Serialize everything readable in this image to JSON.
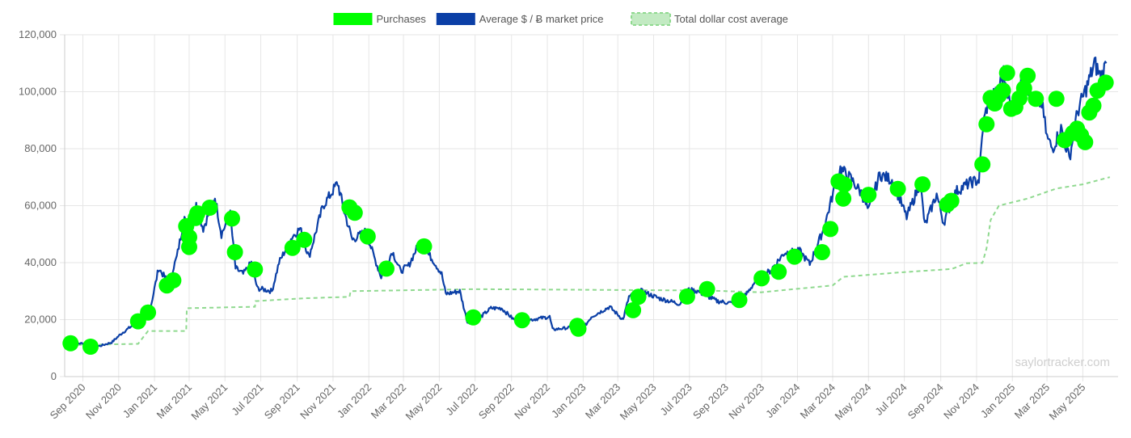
{
  "chart_data": {
    "type": "line",
    "legend": {
      "position": "top",
      "items": [
        {
          "label": "Purchases",
          "color": "#00ff00",
          "style": "filled"
        },
        {
          "label": "Average $ / Ƀ market price",
          "color": "#0b3fa6",
          "style": "filled"
        },
        {
          "label": "Total dollar cost average",
          "color": "#8fd98f",
          "style": "dashed"
        }
      ]
    },
    "y_axis": {
      "min": 0,
      "max": 120000,
      "ticks": [
        0,
        20000,
        40000,
        60000,
        80000,
        100000,
        120000
      ],
      "tick_labels": [
        "0",
        "20,000",
        "40,000",
        "60,000",
        "80,000",
        "100,000",
        "120,000"
      ]
    },
    "x_axis": {
      "min": "2020-08-01",
      "max": "2025-06-30",
      "ticks": [
        "2020-09-01",
        "2020-11-01",
        "2021-01-01",
        "2021-03-01",
        "2021-05-01",
        "2021-07-01",
        "2021-09-01",
        "2021-11-01",
        "2022-01-01",
        "2022-03-01",
        "2022-05-01",
        "2022-07-01",
        "2022-09-01",
        "2022-11-01",
        "2023-01-01",
        "2023-03-01",
        "2023-05-01",
        "2023-07-01",
        "2023-09-01",
        "2023-11-01",
        "2024-01-01",
        "2024-03-01",
        "2024-05-01",
        "2024-07-01",
        "2024-09-01",
        "2024-11-01",
        "2025-01-01",
        "2025-03-01",
        "2025-05-01"
      ],
      "tick_labels": [
        "Sep 2020",
        "Nov 2020",
        "Jan 2021",
        "Mar 2021",
        "May 2021",
        "Jul 2021",
        "Sep 2021",
        "Nov 2021",
        "Jan 2022",
        "Mar 2022",
        "May 2022",
        "Jul 2022",
        "Sep 2022",
        "Nov 2022",
        "Jan 2023",
        "Mar 2023",
        "May 2023",
        "Jul 2023",
        "Sep 2023",
        "Nov 2023",
        "Jan 2024",
        "Mar 2024",
        "May 2024",
        "Jul 2024",
        "Sep 2024",
        "Nov 2024",
        "Jan 2025",
        "Mar 2025",
        "May 2025"
      ]
    },
    "grid": true,
    "watermark": "saylortracker.com",
    "series": [
      {
        "name": "Average $ / Ƀ market price",
        "color": "#0b3fa6",
        "points": [
          [
            "2020-08-11",
            11500
          ],
          [
            "2020-09-01",
            11700
          ],
          [
            "2020-09-15",
            10600
          ],
          [
            "2020-10-01",
            10800
          ],
          [
            "2020-10-20",
            12000
          ],
          [
            "2020-11-05",
            15000
          ],
          [
            "2020-11-25",
            18000
          ],
          [
            "2020-12-10",
            19000
          ],
          [
            "2020-12-25",
            24000
          ],
          [
            "2021-01-08",
            38000
          ],
          [
            "2021-01-25",
            33000
          ],
          [
            "2021-02-08",
            42000
          ],
          [
            "2021-02-21",
            56000
          ],
          [
            "2021-03-01",
            47000
          ],
          [
            "2021-03-13",
            60000
          ],
          [
            "2021-03-25",
            52000
          ],
          [
            "2021-04-14",
            63000
          ],
          [
            "2021-04-25",
            50000
          ],
          [
            "2021-05-10",
            57000
          ],
          [
            "2021-05-19",
            38000
          ],
          [
            "2021-06-01",
            36000
          ],
          [
            "2021-06-15",
            40000
          ],
          [
            "2021-06-25",
            31000
          ],
          [
            "2021-07-20",
            30000
          ],
          [
            "2021-08-01",
            40000
          ],
          [
            "2021-08-23",
            49000
          ],
          [
            "2021-09-06",
            52000
          ],
          [
            "2021-09-21",
            42000
          ],
          [
            "2021-10-15",
            60000
          ],
          [
            "2021-10-25",
            63000
          ],
          [
            "2021-11-09",
            68000
          ],
          [
            "2021-11-20",
            58000
          ],
          [
            "2021-12-04",
            48000
          ],
          [
            "2021-12-27",
            51000
          ],
          [
            "2022-01-10",
            42000
          ],
          [
            "2022-01-22",
            35000
          ],
          [
            "2022-02-10",
            44000
          ],
          [
            "2022-02-24",
            37000
          ],
          [
            "2022-03-10",
            39000
          ],
          [
            "2022-03-28",
            47000
          ],
          [
            "2022-04-20",
            41000
          ],
          [
            "2022-05-05",
            36000
          ],
          [
            "2022-05-12",
            29000
          ],
          [
            "2022-06-05",
            30000
          ],
          [
            "2022-06-18",
            19000
          ],
          [
            "2022-07-05",
            20000
          ],
          [
            "2022-07-28",
            24000
          ],
          [
            "2022-08-15",
            24000
          ],
          [
            "2022-09-05",
            20000
          ],
          [
            "2022-10-05",
            20000
          ],
          [
            "2022-11-05",
            21000
          ],
          [
            "2022-11-10",
            16500
          ],
          [
            "2022-12-10",
            17200
          ],
          [
            "2022-12-31",
            16600
          ],
          [
            "2023-01-15",
            21000
          ],
          [
            "2023-02-15",
            24500
          ],
          [
            "2023-03-10",
            20000
          ],
          [
            "2023-03-20",
            28000
          ],
          [
            "2023-04-10",
            30000
          ],
          [
            "2023-05-10",
            27500
          ],
          [
            "2023-06-15",
            25500
          ],
          [
            "2023-06-25",
            30500
          ],
          [
            "2023-07-15",
            30000
          ],
          [
            "2023-08-17",
            26500
          ],
          [
            "2023-09-10",
            25800
          ],
          [
            "2023-10-01",
            27500
          ],
          [
            "2023-10-25",
            34500
          ],
          [
            "2023-11-15",
            37000
          ],
          [
            "2023-12-10",
            43500
          ],
          [
            "2024-01-05",
            44000
          ],
          [
            "2024-01-22",
            39500
          ],
          [
            "2024-02-15",
            52000
          ],
          [
            "2024-03-05",
            67000
          ],
          [
            "2024-03-14",
            73000
          ],
          [
            "2024-04-01",
            69500
          ],
          [
            "2024-04-20",
            64000
          ],
          [
            "2024-05-01",
            58000
          ],
          [
            "2024-05-20",
            71000
          ],
          [
            "2024-06-10",
            69000
          ],
          [
            "2024-07-05",
            56000
          ],
          [
            "2024-07-28",
            68000
          ],
          [
            "2024-08-05",
            53000
          ],
          [
            "2024-08-25",
            64000
          ],
          [
            "2024-09-06",
            54000
          ],
          [
            "2024-09-27",
            65000
          ],
          [
            "2024-10-20",
            68000
          ],
          [
            "2024-11-05",
            69000
          ],
          [
            "2024-11-12",
            88000
          ],
          [
            "2024-11-22",
            98000
          ],
          [
            "2024-12-05",
            99000
          ],
          [
            "2024-12-17",
            106500
          ],
          [
            "2024-12-31",
            93000
          ],
          [
            "2025-01-20",
            106000
          ],
          [
            "2025-02-05",
            97000
          ],
          [
            "2025-02-20",
            96000
          ],
          [
            "2025-03-01",
            84000
          ],
          [
            "2025-03-10",
            80000
          ],
          [
            "2025-03-25",
            87000
          ],
          [
            "2025-04-08",
            76500
          ],
          [
            "2025-04-22",
            93000
          ],
          [
            "2025-05-10",
            103000
          ],
          [
            "2025-05-21",
            110000
          ],
          [
            "2025-06-01",
            105000
          ],
          [
            "2025-06-10",
            110000
          ]
        ]
      },
      {
        "name": "Total dollar cost average",
        "color": "#8fd98f",
        "points": [
          [
            "2020-08-11",
            11100
          ],
          [
            "2020-09-15",
            11200
          ],
          [
            "2020-12-04",
            11500
          ],
          [
            "2020-12-21",
            16000
          ],
          [
            "2021-02-24",
            16000
          ],
          [
            "2021-02-25",
            24000
          ],
          [
            "2021-06-21",
            24500
          ],
          [
            "2021-06-22",
            26500
          ],
          [
            "2021-09-13",
            27500
          ],
          [
            "2021-11-29",
            28000
          ],
          [
            "2021-12-01",
            30000
          ],
          [
            "2022-06-29",
            30700
          ],
          [
            "2023-07-31",
            30200
          ],
          [
            "2023-10-31",
            29600
          ],
          [
            "2024-03-01",
            32000
          ],
          [
            "2024-03-19",
            35000
          ],
          [
            "2024-06-20",
            36500
          ],
          [
            "2024-09-20",
            37800
          ],
          [
            "2024-10-15",
            39800
          ],
          [
            "2024-11-11",
            39900
          ],
          [
            "2024-11-18",
            45000
          ],
          [
            "2024-11-25",
            55000
          ],
          [
            "2024-12-09",
            60000
          ],
          [
            "2025-01-27",
            62500
          ],
          [
            "2025-03-17",
            66000
          ],
          [
            "2025-05-01",
            67500
          ],
          [
            "2025-06-16",
            70000
          ]
        ]
      },
      {
        "name": "Purchases",
        "color": "#00ff00",
        "points": [
          [
            "2020-08-11",
            11700
          ],
          [
            "2020-09-14",
            10500
          ],
          [
            "2020-12-04",
            19400
          ],
          [
            "2020-12-21",
            22500
          ],
          [
            "2021-01-22",
            32000
          ],
          [
            "2021-02-02",
            33800
          ],
          [
            "2021-02-24",
            52800
          ],
          [
            "2021-03-01",
            48900
          ],
          [
            "2021-03-01",
            45500
          ],
          [
            "2021-03-12",
            55700
          ],
          [
            "2021-03-15",
            57300
          ],
          [
            "2021-04-05",
            59300
          ],
          [
            "2021-05-13",
            55500
          ],
          [
            "2021-05-18",
            43700
          ],
          [
            "2021-06-21",
            37600
          ],
          [
            "2021-08-24",
            45200
          ],
          [
            "2021-09-13",
            48000
          ],
          [
            "2021-11-29",
            59400
          ],
          [
            "2021-12-08",
            57500
          ],
          [
            "2021-12-30",
            49200
          ],
          [
            "2022-01-31",
            37900
          ],
          [
            "2022-04-05",
            45700
          ],
          [
            "2022-06-28",
            20800
          ],
          [
            "2022-09-19",
            19800
          ],
          [
            "2022-12-22",
            17800
          ],
          [
            "2022-12-24",
            16800
          ],
          [
            "2023-03-27",
            23300
          ],
          [
            "2023-04-05",
            28000
          ],
          [
            "2023-06-27",
            28100
          ],
          [
            "2023-07-31",
            30700
          ],
          [
            "2023-09-24",
            26900
          ],
          [
            "2023-11-01",
            34500
          ],
          [
            "2023-11-30",
            36800
          ],
          [
            "2023-12-27",
            42100
          ],
          [
            "2024-02-12",
            43700
          ],
          [
            "2024-02-26",
            51800
          ],
          [
            "2024-03-11",
            68500
          ],
          [
            "2024-03-19",
            62500
          ],
          [
            "2024-03-21",
            67400
          ],
          [
            "2024-05-01",
            63800
          ],
          [
            "2024-06-20",
            65900
          ],
          [
            "2024-08-01",
            67500
          ],
          [
            "2024-09-12",
            60400
          ],
          [
            "2024-09-19",
            61700
          ],
          [
            "2024-11-11",
            74500
          ],
          [
            "2024-11-18",
            88600
          ],
          [
            "2024-11-25",
            97800
          ],
          [
            "2024-12-02",
            95900
          ],
          [
            "2024-12-09",
            98700
          ],
          [
            "2024-12-16",
            100400
          ],
          [
            "2024-12-23",
            106600
          ],
          [
            "2024-12-30",
            94000
          ],
          [
            "2025-01-06",
            94600
          ],
          [
            "2025-01-13",
            97700
          ],
          [
            "2025-01-21",
            101200
          ],
          [
            "2025-01-27",
            105600
          ],
          [
            "2025-02-10",
            97500
          ],
          [
            "2025-03-17",
            97500
          ],
          [
            "2025-03-31",
            83000
          ],
          [
            "2025-04-14",
            85500
          ],
          [
            "2025-04-21",
            87000
          ],
          [
            "2025-04-28",
            84700
          ],
          [
            "2025-05-05",
            82300
          ],
          [
            "2025-05-12",
            92700
          ],
          [
            "2025-05-19",
            95100
          ],
          [
            "2025-05-26",
            100400
          ],
          [
            "2025-06-09",
            103200
          ]
        ]
      }
    ]
  }
}
